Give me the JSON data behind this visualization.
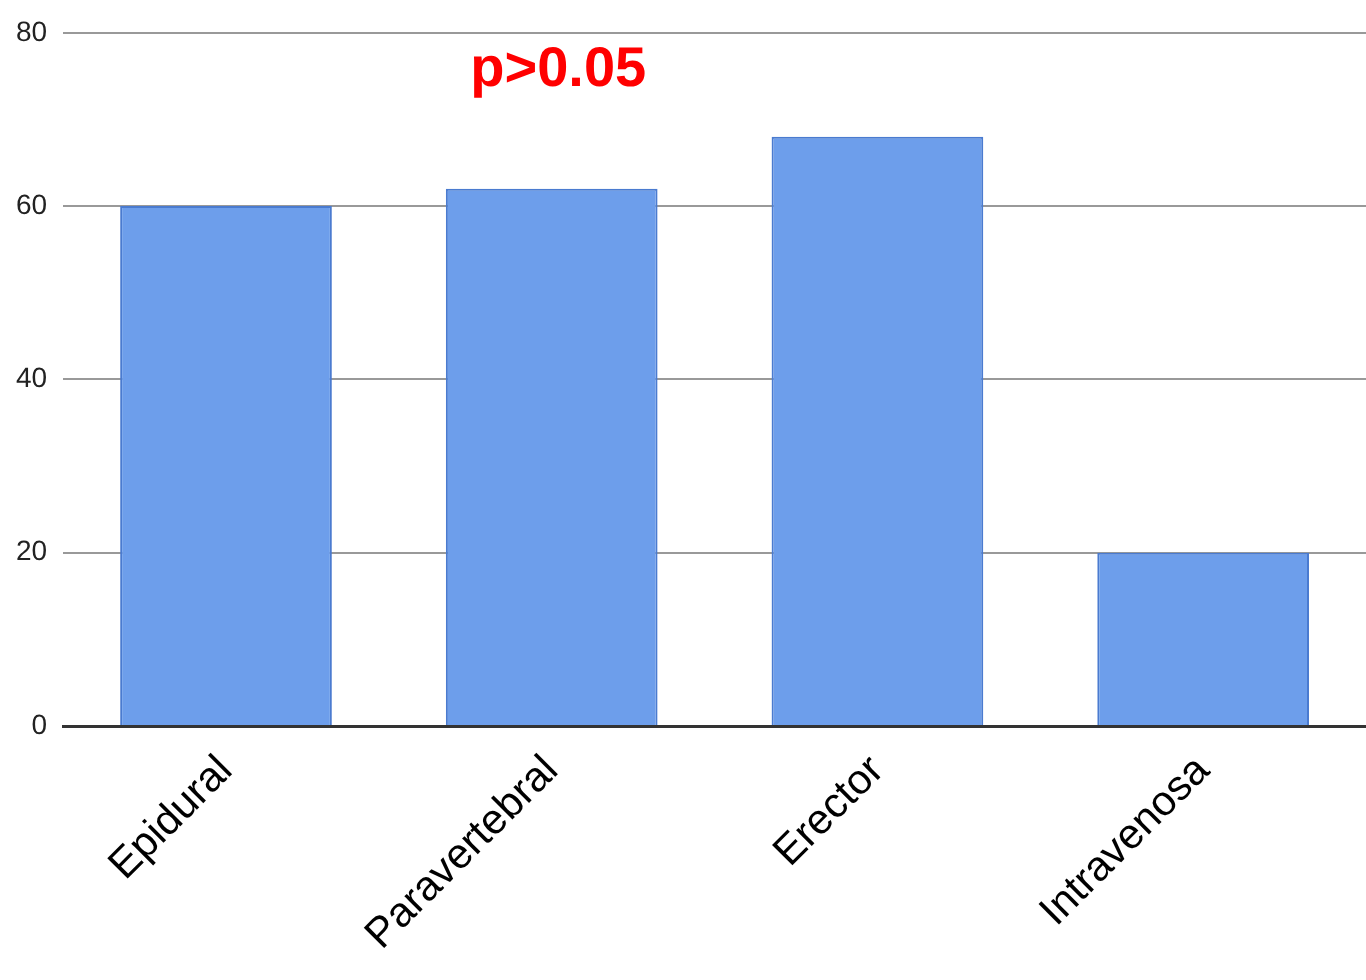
{
  "chart_data": {
    "type": "bar",
    "categories": [
      "Epidural",
      "Paravertebral",
      "Erector",
      "Intravenosa"
    ],
    "values": [
      60,
      62,
      68,
      20
    ],
    "color": "#6d9eeb",
    "ylim": [
      0,
      80
    ],
    "yticks": [
      0,
      20,
      40,
      60,
      80
    ],
    "grid": "y",
    "legend": false,
    "annotations": [
      "p>0.05"
    ]
  }
}
